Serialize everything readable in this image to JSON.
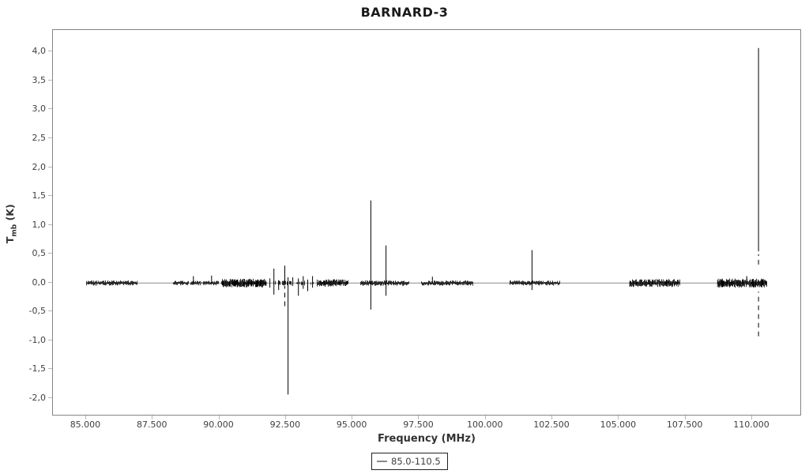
{
  "window": {
    "background": "#ffffff"
  },
  "chart_data": {
    "type": "line",
    "title": "BARNARD-3",
    "xlabel": "Frequency (MHz)",
    "ylabel": "T_mb (K)",
    "ylabel_parts": {
      "main": "T",
      "sub": "mb",
      "rest": " (K)"
    },
    "xlim": [
      83.756,
      111.81
    ],
    "ylim": [
      -2.28,
      4.38
    ],
    "grid": false,
    "series_color": "#000000",
    "baseline": {
      "y": 0.0,
      "from": 85.0,
      "to": 110.53,
      "color": "#8a8a8a"
    },
    "x_ticks": [
      {
        "v": 85.0,
        "label": "85.000"
      },
      {
        "v": 87.5,
        "label": "87.500"
      },
      {
        "v": 90.0,
        "label": "90.000"
      },
      {
        "v": 92.5,
        "label": "92.500"
      },
      {
        "v": 95.0,
        "label": "95.000"
      },
      {
        "v": 97.5,
        "label": "97.500"
      },
      {
        "v": 100.0,
        "label": "100.000"
      },
      {
        "v": 102.5,
        "label": "102.500"
      },
      {
        "v": 105.0,
        "label": "105.000"
      },
      {
        "v": 107.5,
        "label": "107.500"
      },
      {
        "v": 110.0,
        "label": "110.000"
      }
    ],
    "y_ticks": [
      {
        "v": 4.0,
        "label": "4,0"
      },
      {
        "v": 3.5,
        "label": "3,5"
      },
      {
        "v": 3.0,
        "label": "3,0"
      },
      {
        "v": 2.5,
        "label": "2,5"
      },
      {
        "v": 2.0,
        "label": "2,0"
      },
      {
        "v": 1.5,
        "label": "1,5"
      },
      {
        "v": 1.0,
        "label": "1,0"
      },
      {
        "v": 0.5,
        "label": "0,5"
      },
      {
        "v": 0.0,
        "label": "0,0"
      },
      {
        "v": -0.5,
        "label": "-0,5"
      },
      {
        "v": -1.0,
        "label": "-1,0"
      },
      {
        "v": -1.5,
        "label": "-1,5"
      },
      {
        "v": -2.0,
        "label": "-2,0"
      }
    ],
    "noise_segments": [
      {
        "f0": 85.0,
        "f1": 86.9,
        "amp": 0.045,
        "density": 1.0
      },
      {
        "f0": 88.26,
        "f1": 90.09,
        "amp": 0.04,
        "density": 0.9
      },
      {
        "f0": 90.09,
        "f1": 91.72,
        "amp": 0.075,
        "density": 1.8
      },
      {
        "f0": 91.87,
        "f1": 93.65,
        "amp": 0.045,
        "density": 0.45
      },
      {
        "f0": 93.65,
        "f1": 94.83,
        "amp": 0.065,
        "density": 1.5
      },
      {
        "f0": 95.28,
        "f1": 97.11,
        "amp": 0.05,
        "density": 1.0
      },
      {
        "f0": 97.59,
        "f1": 99.51,
        "amp": 0.045,
        "density": 1.0
      },
      {
        "f0": 100.91,
        "f1": 102.77,
        "amp": 0.045,
        "density": 1.0
      },
      {
        "f0": 105.41,
        "f1": 107.28,
        "amp": 0.07,
        "density": 1.6
      },
      {
        "f0": 108.7,
        "f1": 110.53,
        "amp": 0.08,
        "density": 1.7
      }
    ],
    "spikes": [
      {
        "f": 89.03,
        "v0": 0.0,
        "v1": 0.12
      },
      {
        "f": 89.71,
        "v0": 0.0,
        "v1": 0.13
      },
      {
        "f": 91.9,
        "v0": -0.08,
        "v1": 0.08
      },
      {
        "f": 92.05,
        "v0": -0.2,
        "v1": 0.25
      },
      {
        "f": 92.23,
        "v0": -0.12,
        "v1": 0.05
      },
      {
        "f": 92.46,
        "v0": 0.0,
        "v1": 0.3
      },
      {
        "f": 92.46,
        "v0": -0.4,
        "v1": -0.05,
        "dash": true
      },
      {
        "f": 92.58,
        "v0": -1.93,
        "v1": 0.1
      },
      {
        "f": 92.76,
        "v0": -0.05,
        "v1": 0.1
      },
      {
        "f": 92.97,
        "v0": -0.22,
        "v1": 0.08
      },
      {
        "f": 93.15,
        "v0": -0.1,
        "v1": 0.12
      },
      {
        "f": 93.32,
        "v0": -0.14,
        "v1": 0.06
      },
      {
        "f": 93.5,
        "v0": -0.08,
        "v1": 0.12
      },
      {
        "f": 95.69,
        "v0": -0.46,
        "v1": 1.43
      },
      {
        "f": 96.26,
        "v0": -0.22,
        "v1": 0.65
      },
      {
        "f": 98.0,
        "v0": 0.0,
        "v1": 0.11
      },
      {
        "f": 101.74,
        "v0": -0.12,
        "v1": 0.57
      },
      {
        "f": 109.8,
        "v0": 0.0,
        "v1": 0.12
      },
      {
        "f": 110.24,
        "v0": 0.55,
        "v1": 4.07
      },
      {
        "f": 110.24,
        "v0": 0.32,
        "v1": 0.5,
        "dash": true
      },
      {
        "f": 110.24,
        "v0": -0.92,
        "v1": -0.15,
        "dash": true
      }
    ],
    "legend": {
      "position": "bottom-center",
      "entries": [
        {
          "label": "85.0-110.5",
          "color": "#8a8a8a"
        }
      ]
    }
  }
}
